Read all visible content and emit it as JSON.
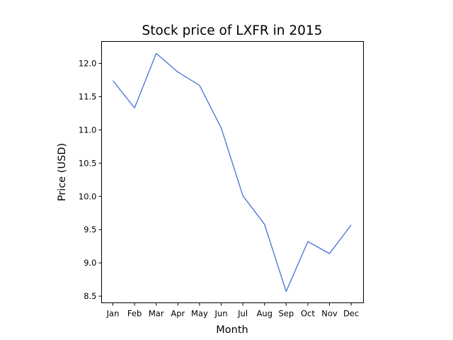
{
  "chart_data": {
    "type": "line",
    "title": "Stock price of LXFR in 2015",
    "xlabel": "Month",
    "ylabel": "Price (USD)",
    "categories": [
      "Jan",
      "Feb",
      "Mar",
      "Apr",
      "May",
      "Jun",
      "Jul",
      "Aug",
      "Sep",
      "Oct",
      "Nov",
      "Dec"
    ],
    "series": [
      {
        "values": [
          11.74,
          11.33,
          12.15,
          11.87,
          11.67,
          11.03,
          10.01,
          9.58,
          8.57,
          9.32,
          9.14,
          9.57
        ]
      }
    ],
    "yticks": [
      "8.5",
      "9.0",
      "9.5",
      "10.0",
      "10.5",
      "11.0",
      "11.5",
      "12.0"
    ],
    "ylim": [
      8.4,
      12.33
    ],
    "grid": false,
    "colors": {
      "line": "#4472d0",
      "axes": "#000000"
    }
  }
}
